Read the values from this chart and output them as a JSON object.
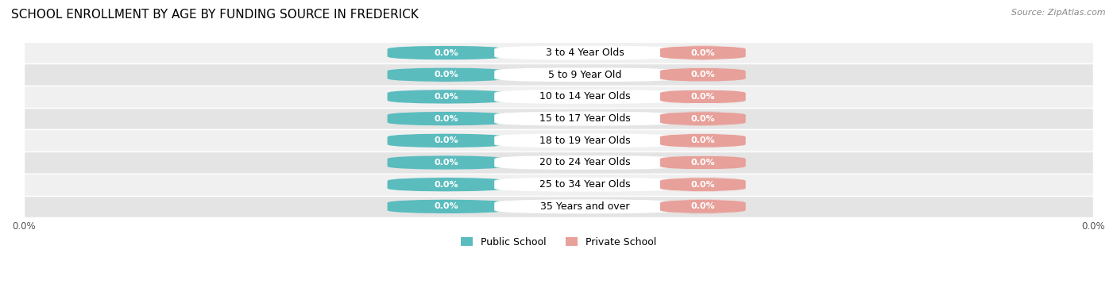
{
  "title": "SCHOOL ENROLLMENT BY AGE BY FUNDING SOURCE IN FREDERICK",
  "source": "Source: ZipAtlas.com",
  "categories": [
    "3 to 4 Year Olds",
    "5 to 9 Year Old",
    "10 to 14 Year Olds",
    "15 to 17 Year Olds",
    "18 to 19 Year Olds",
    "20 to 24 Year Olds",
    "25 to 34 Year Olds",
    "35 Years and over"
  ],
  "public_values": [
    0.0,
    0.0,
    0.0,
    0.0,
    0.0,
    0.0,
    0.0,
    0.0
  ],
  "private_values": [
    0.0,
    0.0,
    0.0,
    0.0,
    0.0,
    0.0,
    0.0,
    0.0
  ],
  "public_color": "#5bbcbe",
  "private_color": "#e8a09a",
  "row_bg_color_odd": "#f0f0f0",
  "row_bg_color_even": "#e4e4e4",
  "public_label": "Public School",
  "private_label": "Private School",
  "bar_height": 0.6,
  "background_color": "#ffffff",
  "title_fontsize": 11,
  "value_fontsize": 8,
  "label_fontsize": 9,
  "tick_fontsize": 8.5,
  "source_fontsize": 8
}
